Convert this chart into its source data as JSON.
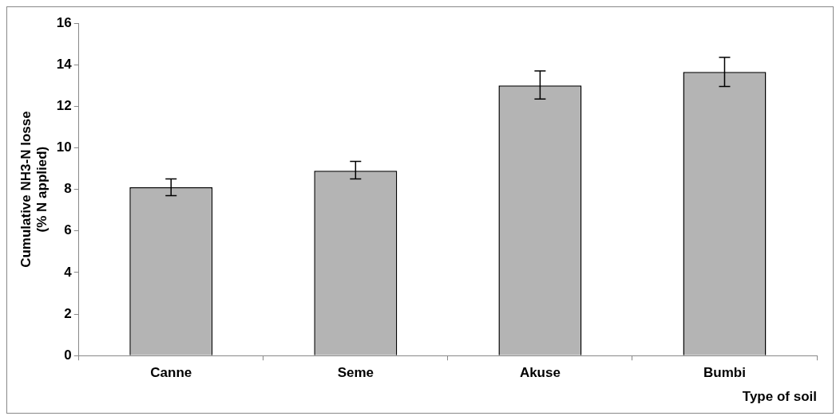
{
  "chart_data": {
    "type": "bar",
    "categories": [
      "Canne",
      "Seme",
      "Akuse",
      "Bumbi"
    ],
    "values": [
      8.1,
      8.9,
      13.0,
      13.65
    ],
    "errors": [
      [
        7.7,
        8.5
      ],
      [
        8.5,
        9.35
      ],
      [
        12.35,
        13.7
      ],
      [
        12.95,
        14.35
      ]
    ],
    "color": "#b4b4b4",
    "xlabel": "Type of soil",
    "ylabel": "Cumulative NH3-N losse\n(% N applied)",
    "ylim": [
      0,
      16
    ],
    "yticks": [
      0,
      2,
      4,
      6,
      8,
      10,
      12,
      14,
      16
    ],
    "grid": false,
    "legend": false
  }
}
